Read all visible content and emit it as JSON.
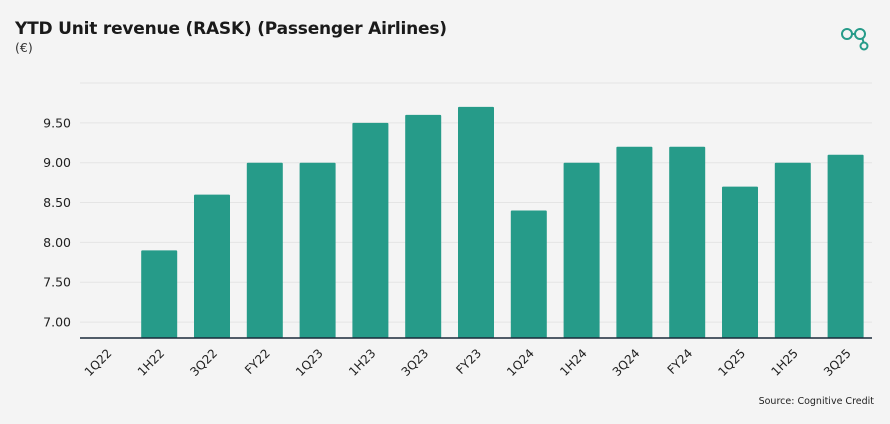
{
  "title": "YTD Unit revenue (RASK) (Passenger Airlines)",
  "subtitle": "(€)",
  "source": "Source: Cognitive Credit",
  "logo_icon": "cognitive-credit-logo-icon",
  "colors": {
    "bar": "#269b89",
    "axis": "#1a2a3a",
    "grid": "#e4e4e4",
    "logo": "#269b89"
  },
  "chart_data": {
    "type": "bar",
    "title": "YTD Unit revenue (RASK) (Passenger Airlines)",
    "ylabel": "(€)",
    "xlabel": "",
    "categories": [
      "1Q22",
      "1H22",
      "3Q22",
      "FY22",
      "1Q23",
      "1H23",
      "3Q23",
      "FY23",
      "1Q24",
      "1H24",
      "3Q24",
      "FY24",
      "1Q25",
      "1H25",
      "3Q25"
    ],
    "values": [
      null,
      7.9,
      8.6,
      9.0,
      9.0,
      9.5,
      9.6,
      9.7,
      8.4,
      9.0,
      9.2,
      9.2,
      8.7,
      9.0,
      9.1
    ],
    "yticks": [
      "7.00",
      "7.50",
      "8.00",
      "8.50",
      "9.00",
      "9.50"
    ],
    "ylim": [
      6.8,
      10.0
    ],
    "grid": true,
    "legend": "none"
  }
}
